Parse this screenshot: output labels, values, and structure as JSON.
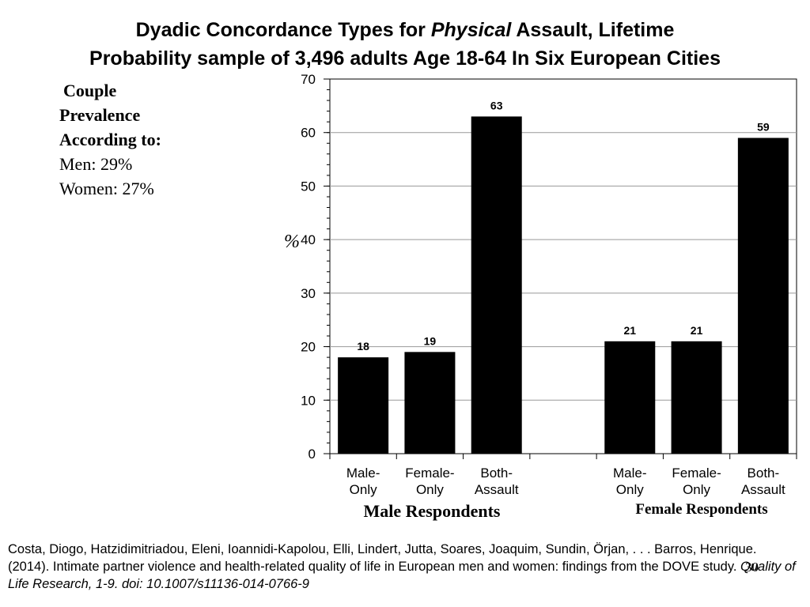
{
  "slide": {
    "title_line1_pre": "Dyadic Concordance Types for ",
    "title_line1_italic": "Physical",
    "title_line1_post": " Assault, Lifetime",
    "title_line2": "Probability sample of 3,496 adults Age 18-64 In Six European Cities",
    "prevalence": {
      "heading1": "Couple",
      "heading2": "Prevalence",
      "heading3": "According to:",
      "men": "Men: 29%",
      "women": "Women: 27%"
    },
    "citation_main": "Costa, Diogo, Hatzidimitriadou, Eleni, Ioannidi-Kapolou, Elli, Lindert, Jutta, Soares, Joaquim, Sundin, Örjan, . . . Barros, Henrique. (2014). Intimate partner violence and health-related quality of life in European men and women: findings from the DOVE study. ",
    "citation_italic": "Quality of Life Research, 1-9. doi: 10.1007/s11136-014-0766-9",
    "page_number": "30"
  },
  "chart_data": {
    "type": "bar",
    "ylabel": "%",
    "ylim": [
      0,
      70
    ],
    "yticks": [
      0,
      10,
      20,
      30,
      40,
      50,
      60,
      70
    ],
    "grid": true,
    "bar_color": "#000000",
    "categories": [
      {
        "label": [
          "Male-",
          "Only"
        ],
        "value": 18
      },
      {
        "label": [
          "Female-",
          "Only"
        ],
        "value": 19
      },
      {
        "label": [
          "Both-",
          "Assault"
        ],
        "value": 63
      },
      {
        "label": [
          "",
          ""
        ],
        "value": null
      },
      {
        "label": [
          "Male-",
          "Only"
        ],
        "value": 21
      },
      {
        "label": [
          "Female-",
          "Only"
        ],
        "value": 21
      },
      {
        "label": [
          "Both-",
          "Assault"
        ],
        "value": 59
      }
    ],
    "groups": [
      {
        "label": "Male Respondents"
      },
      {
        "label": "Female Respondents"
      }
    ]
  }
}
